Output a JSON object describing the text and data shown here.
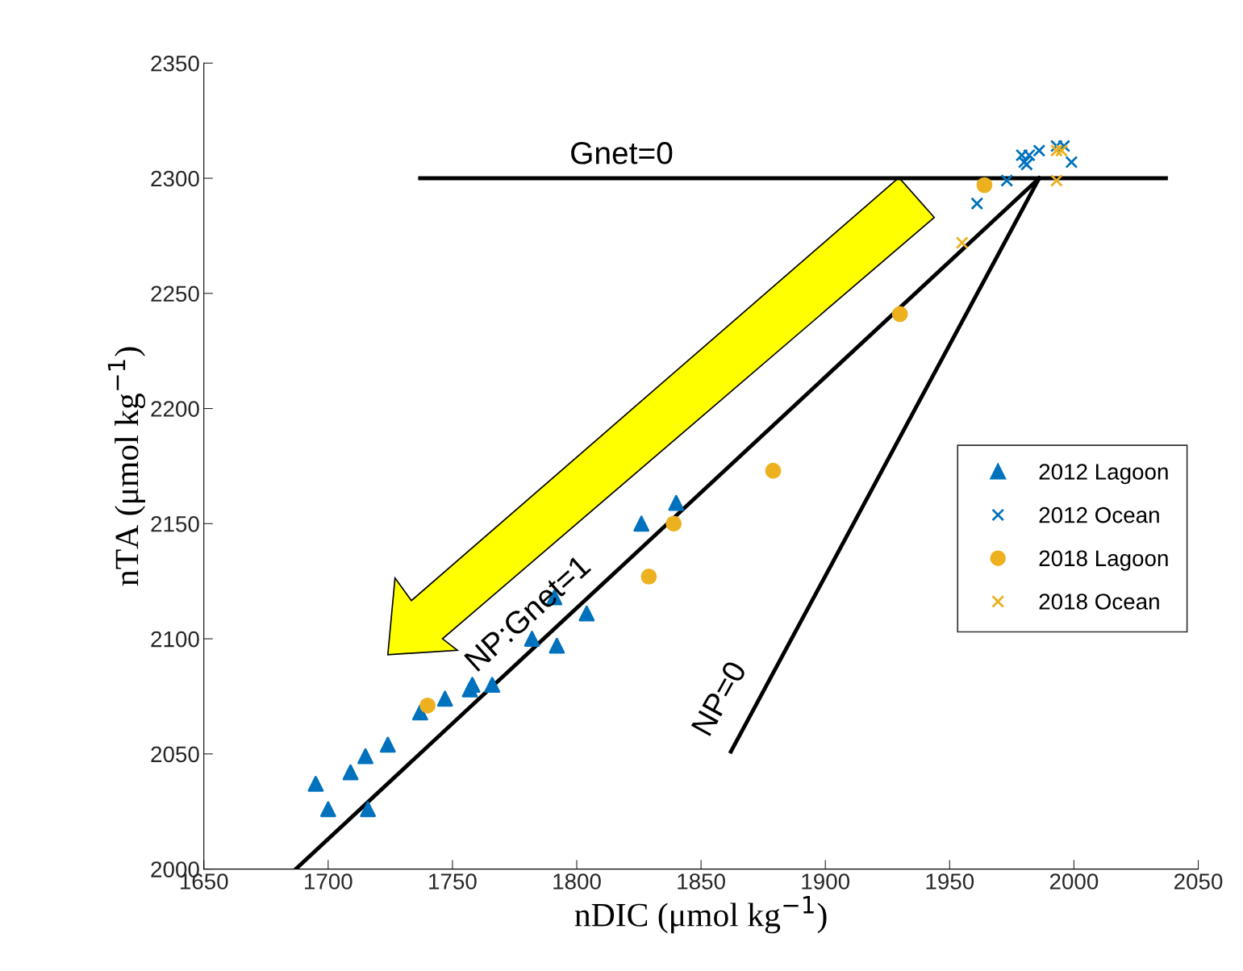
{
  "chart_data": {
    "type": "scatter",
    "xlabel": "nDIC (μmol kg$^{−1}$)",
    "ylabel": "nTA (μmol kg$^{−1}$)",
    "xlim": [
      1650,
      2050
    ],
    "ylim": [
      2000,
      2350
    ],
    "xticks": [
      1650,
      1700,
      1750,
      1800,
      1850,
      1900,
      1950,
      2000,
      2050
    ],
    "yticks": [
      2000,
      2050,
      2100,
      2150,
      2200,
      2250,
      2300,
      2350
    ],
    "grid": false,
    "legend": "right",
    "series": [
      {
        "name": "2012 Lagoon",
        "color": "#0072bd",
        "marker": "triangle",
        "x": [
          1695,
          1700,
          1709,
          1715,
          1724,
          1716,
          1737,
          1747,
          1757,
          1758,
          1766,
          1782,
          1792,
          1791,
          1804,
          1826,
          1840
        ],
        "values": [
          2037,
          2026,
          2042,
          2049,
          2054,
          2026,
          2068,
          2074,
          2078,
          2080,
          2080,
          2100,
          2097,
          2118,
          2111,
          2150,
          2159
        ]
      },
      {
        "name": "2012 Ocean",
        "color": "#0072bd",
        "marker": "cross",
        "x": [
          1961,
          1973,
          1980,
          1982,
          1986,
          1979,
          1993,
          1996,
          1999,
          1981
        ],
        "values": [
          2289,
          2299,
          2307,
          2310,
          2312,
          2310,
          2314,
          2314,
          2307,
          2306
        ]
      },
      {
        "name": "2018 Lagoon",
        "color": "#edb120",
        "marker": "circle",
        "x": [
          1740,
          1829,
          1839,
          1879,
          1930,
          1964
        ],
        "values": [
          2071,
          2127,
          2150,
          2173,
          2241,
          2297
        ]
      },
      {
        "name": "2018 Ocean",
        "color": "#edb120",
        "marker": "cross",
        "x": [
          1955,
          1993,
          1993,
          1995
        ],
        "values": [
          2272,
          2299,
          2312,
          2312
        ]
      },
      {
        "type": "line",
        "color": "#000000",
        "line_style": "solid",
        "x": [
          1737,
          2037
        ],
        "values": [
          2300,
          2300
        ]
      },
      {
        "type": "line",
        "color": "#000000",
        "line_style": "solid",
        "x": [
          1687,
          1986
        ],
        "values": [
          2000,
          2300
        ]
      },
      {
        "type": "line",
        "color": "#000000",
        "line_style": "solid",
        "x": [
          1986,
          1862
        ],
        "values": [
          2300,
          2051
        ]
      }
    ],
    "annotations": [
      "Gnet=0",
      "NP:Gnet=1",
      "NP=0"
    ]
  }
}
